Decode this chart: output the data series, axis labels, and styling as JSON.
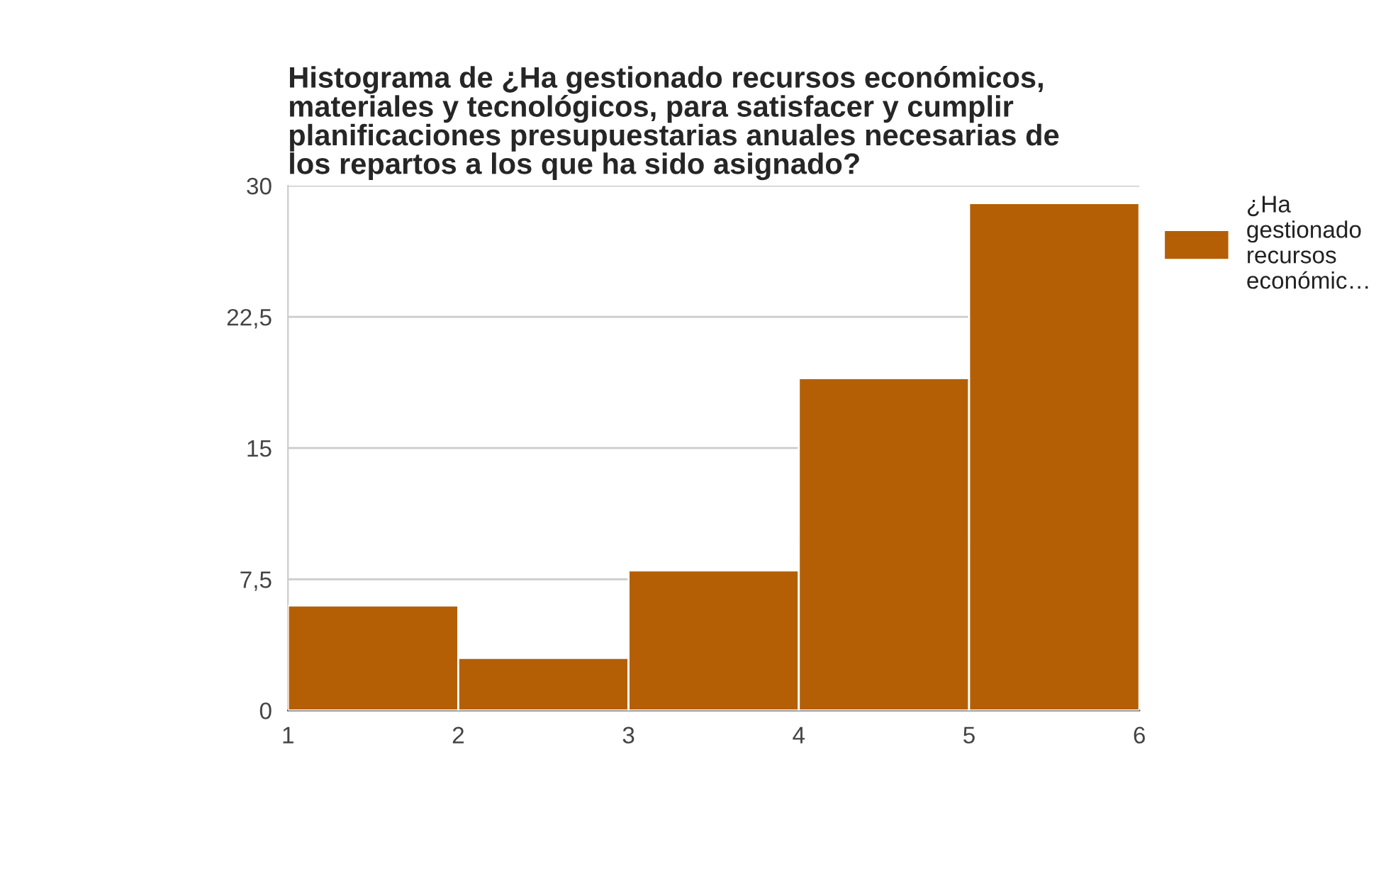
{
  "chart_data": {
    "type": "histogram",
    "title": "Histograma de ¿Ha gestionado recursos económicos,\nmateriales y tecnológicos, para satisfacer y cumplir\nplanificaciones presupuestarias anuales necesarias de\nlos repartos a los que ha sido asignado?",
    "bins": [
      1,
      2,
      3,
      4,
      5,
      6
    ],
    "series": [
      {
        "name": "¿Ha gestionado recursos económic…",
        "color": "#b45f06",
        "values": [
          6,
          3,
          8,
          19,
          29
        ]
      }
    ],
    "xlim": [
      1,
      6
    ],
    "xticks": [
      1,
      2,
      3,
      4,
      5,
      6
    ],
    "ylim": [
      0,
      30
    ],
    "yticks": [
      0,
      {
        "value": 7.5,
        "label": "7,5"
      },
      15,
      {
        "value": 22.5,
        "label": "22,5"
      },
      30
    ],
    "grid": "y",
    "legend": "top right"
  }
}
